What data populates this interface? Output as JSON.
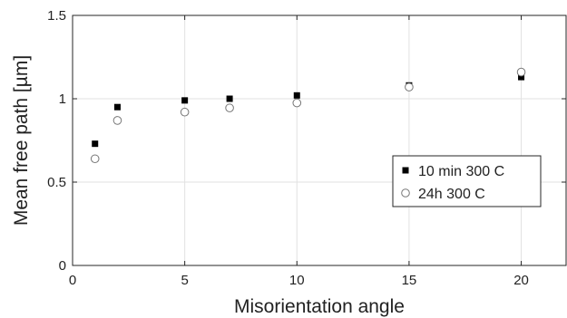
{
  "chart_data": {
    "type": "scatter",
    "title": "",
    "xlabel": "Misorientation angle",
    "ylabel": "Mean free path [µm]",
    "xlim": [
      0,
      22
    ],
    "ylim": [
      0,
      1.5
    ],
    "xticks": [
      0,
      5,
      10,
      15,
      20
    ],
    "yticks": [
      0,
      0.5,
      1,
      1.5
    ],
    "xtick_labels": [
      "0",
      "5",
      "10",
      "15",
      "20"
    ],
    "ytick_labels": [
      "0",
      "0.5",
      "1",
      "1.5"
    ],
    "grid": true,
    "legend_position": "right",
    "series": [
      {
        "name": "10 min 300 C",
        "marker": "filled-square",
        "color": "#000000",
        "x": [
          1,
          2,
          5,
          7,
          10,
          15,
          20
        ],
        "y": [
          0.73,
          0.95,
          0.99,
          1.0,
          1.02,
          1.08,
          1.13
        ]
      },
      {
        "name": "24h 300 C",
        "marker": "open-circle",
        "color": "#777777",
        "x": [
          1,
          2,
          5,
          7,
          10,
          15,
          20
        ],
        "y": [
          0.64,
          0.87,
          0.92,
          0.945,
          0.975,
          1.07,
          1.16
        ]
      }
    ]
  }
}
